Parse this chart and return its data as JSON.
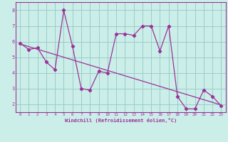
{
  "xlabel": "Windchill (Refroidissement éolien,°C)",
  "x_ticks": [
    0,
    1,
    2,
    3,
    4,
    5,
    6,
    7,
    8,
    9,
    10,
    11,
    12,
    13,
    14,
    15,
    16,
    17,
    18,
    19,
    20,
    21,
    22,
    23
  ],
  "y_ticks": [
    2,
    3,
    4,
    5,
    6,
    7,
    8
  ],
  "ylim": [
    1.5,
    8.5
  ],
  "xlim": [
    -0.5,
    23.5
  ],
  "bg_color": "#cceee8",
  "line_color": "#993399",
  "grid_color": "#99cccc",
  "line1_x": [
    0,
    1,
    2,
    3,
    4,
    5,
    6,
    7,
    8,
    9,
    10,
    11,
    12,
    13,
    14,
    15,
    16,
    17,
    18,
    19,
    20,
    21,
    22,
    23
  ],
  "line1_y": [
    5.9,
    5.5,
    5.6,
    4.7,
    4.2,
    8.0,
    5.7,
    3.0,
    2.9,
    4.1,
    4.0,
    6.5,
    6.5,
    6.4,
    7.0,
    7.0,
    5.4,
    7.0,
    2.5,
    1.7,
    1.7,
    2.9,
    2.5,
    1.9
  ],
  "line2_x": [
    0,
    23
  ],
  "line2_y": [
    5.85,
    1.95
  ]
}
